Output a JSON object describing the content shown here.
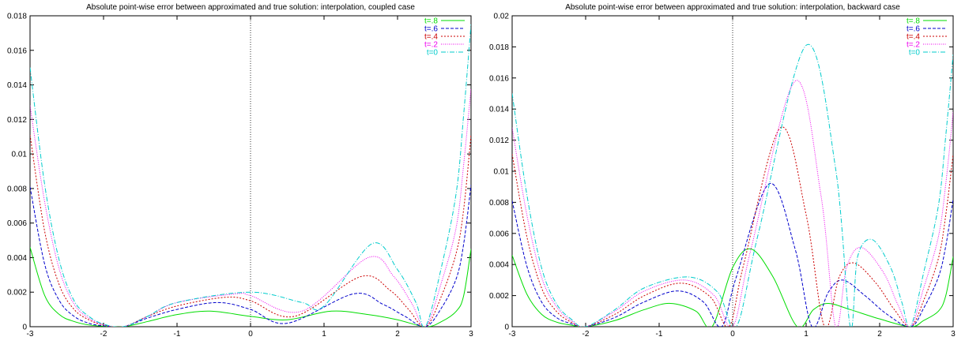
{
  "chart_data": [
    {
      "type": "line",
      "title": "Absolute point-wise error between approximated and true solution: interpolation, coupled case",
      "xlim": [
        -3,
        3
      ],
      "ylim": [
        0,
        0.018
      ],
      "xticks": [
        "-3",
        "-2",
        "-1",
        "0",
        "1",
        "2",
        "3"
      ],
      "yticks": [
        "0",
        "0.002",
        "0.004",
        "0.006",
        "0.008",
        "0.01",
        "0.012",
        "0.014",
        "0.016",
        "0.018"
      ],
      "zero_line": true,
      "grid": false,
      "legend": "top-right",
      "series": [
        {
          "name": "t=.8",
          "color": "#00dd00",
          "dash": "none",
          "x": [
            -3,
            -2.8,
            -2.6,
            -2.4,
            -2.2,
            -2,
            -1.73,
            -1.4,
            -1,
            -0.55,
            0,
            0.5,
            1.1,
            1.6,
            2.0,
            2.38,
            2.6,
            2.8,
            2.9,
            3
          ],
          "y": [
            0.0046,
            0.0018,
            0.0007,
            0.0003,
            0.0001,
            3e-05,
            0,
            0.0003,
            0.0007,
            0.0009,
            0.0006,
            0.0004,
            0.0009,
            0.0007,
            0.0004,
            0,
            0.0003,
            0.0009,
            0.0018,
            0.0045
          ]
        },
        {
          "name": "t=.6",
          "color": "#0000cc",
          "dash": "4,2",
          "x": [
            -3,
            -2.8,
            -2.6,
            -2.4,
            -2.2,
            -2,
            -1.73,
            -1.4,
            -1,
            -0.45,
            0,
            0.5,
            1.4,
            1.8,
            2.1,
            2.38,
            2.6,
            2.8,
            2.9,
            3
          ],
          "y": [
            0.0081,
            0.0036,
            0.0015,
            0.0006,
            0.0002,
            5e-05,
            0,
            0.0005,
            0.001,
            0.0014,
            0.001,
            0.0002,
            0.0019,
            0.0013,
            0.0006,
            0,
            0.0011,
            0.0028,
            0.0048,
            0.0082
          ]
        },
        {
          "name": "t=.4",
          "color": "#cc0000",
          "dash": "2,2",
          "x": [
            -3,
            -2.8,
            -2.6,
            -2.4,
            -2.2,
            -2,
            -1.73,
            -1.4,
            -1,
            -0.35,
            0,
            0.6,
            1.5,
            1.9,
            2.15,
            2.38,
            2.6,
            2.8,
            2.9,
            3
          ],
          "y": [
            0.0111,
            0.0055,
            0.0024,
            0.001,
            0.0004,
            0.0001,
            0,
            0.0006,
            0.0012,
            0.0017,
            0.0015,
            0.0006,
            0.0029,
            0.0021,
            0.001,
            0,
            0.0018,
            0.0043,
            0.0068,
            0.0111
          ]
        },
        {
          "name": "t=.2",
          "color": "#ee00ee",
          "dash": "1,1.5",
          "x": [
            -3,
            -2.8,
            -2.6,
            -2.4,
            -2.2,
            -2,
            -1.73,
            -1.4,
            -1,
            -0.2,
            0,
            0.7,
            1.6,
            1.95,
            2.2,
            2.38,
            2.6,
            2.8,
            2.9,
            3
          ],
          "y": [
            0.0128,
            0.0072,
            0.0033,
            0.0013,
            0.0005,
            0.00012,
            0,
            0.0006,
            0.0014,
            0.0019,
            0.0018,
            0.0009,
            0.004,
            0.0029,
            0.0013,
            0,
            0.0026,
            0.0058,
            0.0094,
            0.0138
          ]
        },
        {
          "name": "t=0",
          "color": "#00cccc",
          "dash": "6,2,1,2",
          "x": [
            -3,
            -2.8,
            -2.6,
            -2.4,
            -2.2,
            -2,
            -1.73,
            -1.4,
            -1,
            0,
            0.7,
            1.0,
            1.65,
            2.0,
            2.25,
            2.38,
            2.6,
            2.8,
            2.9,
            3
          ],
          "y": [
            0.015,
            0.0082,
            0.0038,
            0.0015,
            0.0006,
            0.00015,
            0,
            0.0006,
            0.0014,
            0.002,
            0.0014,
            0.0012,
            0.0048,
            0.0033,
            0.0014,
            0,
            0.0035,
            0.0078,
            0.0123,
            0.0175
          ]
        }
      ]
    },
    {
      "type": "line",
      "title": "Absolute point-wise error between approximated and true solution: interpolation, backward case",
      "xlim": [
        -3,
        3
      ],
      "ylim": [
        0,
        0.02
      ],
      "xticks": [
        "-3",
        "-2",
        "-1",
        "0",
        "1",
        "2",
        "3"
      ],
      "yticks": [
        "0",
        "0.002",
        "0.004",
        "0.006",
        "0.008",
        "0.01",
        "0.012",
        "0.014",
        "0.016",
        "0.018",
        "0.02"
      ],
      "zero_line": true,
      "grid": false,
      "legend": "top-right",
      "series": [
        {
          "name": "t=.8",
          "color": "#00dd00",
          "dash": "none",
          "x": [
            -3,
            -2.8,
            -2.6,
            -2.4,
            -2.2,
            -2,
            -1.6,
            -1.2,
            -0.85,
            -0.5,
            -0.28,
            0,
            0.25,
            0.55,
            0.88,
            1.1,
            1.3,
            1.6,
            2.0,
            2.42,
            2.6,
            2.8,
            2.9,
            3
          ],
          "y": [
            0.0046,
            0.0021,
            0.0008,
            0.0003,
            0.0001,
            0,
            0.0004,
            0.0011,
            0.0015,
            0.001,
            0,
            0.0038,
            0.005,
            0.0032,
            0,
            0.0011,
            0.0015,
            0.0011,
            0.0005,
            0,
            0.0004,
            0.001,
            0.002,
            0.0045
          ]
        },
        {
          "name": "t=.6",
          "color": "#0000cc",
          "dash": "4,2",
          "x": [
            -3,
            -2.8,
            -2.6,
            -2.4,
            -2.2,
            -2,
            -1.6,
            -1.2,
            -0.75,
            -0.4,
            -0.15,
            0.05,
            0.5,
            0.85,
            1.08,
            1.3,
            1.5,
            1.8,
            2.1,
            2.42,
            2.6,
            2.8,
            2.9,
            3
          ],
          "y": [
            0.0081,
            0.0039,
            0.0016,
            0.0006,
            0.0002,
            0,
            0.0006,
            0.0016,
            0.0023,
            0.0016,
            0,
            0.0032,
            0.0092,
            0.005,
            0,
            0.0022,
            0.003,
            0.002,
            0.0008,
            0,
            0.0012,
            0.0032,
            0.0052,
            0.0082
          ]
        },
        {
          "name": "t=.4",
          "color": "#cc0000",
          "dash": "2,2",
          "x": [
            -3,
            -2.8,
            -2.6,
            -2.4,
            -2.2,
            -2,
            -1.6,
            -1.2,
            -0.7,
            -0.3,
            -0.05,
            0.15,
            0.65,
            1.0,
            1.25,
            1.45,
            1.65,
            1.95,
            2.2,
            2.42,
            2.6,
            2.8,
            2.9,
            3
          ],
          "y": [
            0.0111,
            0.0058,
            0.0025,
            0.001,
            0.0003,
            0,
            0.0008,
            0.002,
            0.0028,
            0.0019,
            0,
            0.004,
            0.0128,
            0.0072,
            0,
            0.0032,
            0.0041,
            0.0028,
            0.0011,
            0,
            0.0017,
            0.0044,
            0.0072,
            0.0111
          ]
        },
        {
          "name": "t=.2",
          "color": "#ee00ee",
          "dash": "1,1.5",
          "x": [
            -3,
            -2.8,
            -2.6,
            -2.4,
            -2.2,
            -2,
            -1.6,
            -1.2,
            -0.65,
            -0.25,
            0.0,
            0.25,
            0.85,
            1.2,
            1.4,
            1.55,
            1.75,
            2.05,
            2.25,
            2.42,
            2.6,
            2.8,
            2.9,
            3
          ],
          "y": [
            0.0128,
            0.0072,
            0.0032,
            0.0013,
            0.0004,
            0,
            0.001,
            0.0023,
            0.003,
            0.002,
            0,
            0.005,
            0.0158,
            0.0085,
            0,
            0.0038,
            0.0051,
            0.0035,
            0.0014,
            0,
            0.0025,
            0.0058,
            0.0092,
            0.0138
          ]
        },
        {
          "name": "t=0",
          "color": "#00cccc",
          "dash": "6,2,1,2",
          "x": [
            -3,
            -2.8,
            -2.6,
            -2.4,
            -2.2,
            -2,
            -1.6,
            -1.2,
            -0.6,
            -0.2,
            0.05,
            0.35,
            1.0,
            1.4,
            1.6,
            1.7,
            1.9,
            2.15,
            2.3,
            2.42,
            2.6,
            2.8,
            2.9,
            3
          ],
          "y": [
            0.015,
            0.0085,
            0.0038,
            0.0015,
            0.0005,
            0,
            0.0011,
            0.0025,
            0.0032,
            0.0022,
            0,
            0.006,
            0.0181,
            0.0102,
            0,
            0.0045,
            0.0056,
            0.0038,
            0.0016,
            0,
            0.0035,
            0.0078,
            0.0123,
            0.0175
          ]
        }
      ]
    }
  ]
}
